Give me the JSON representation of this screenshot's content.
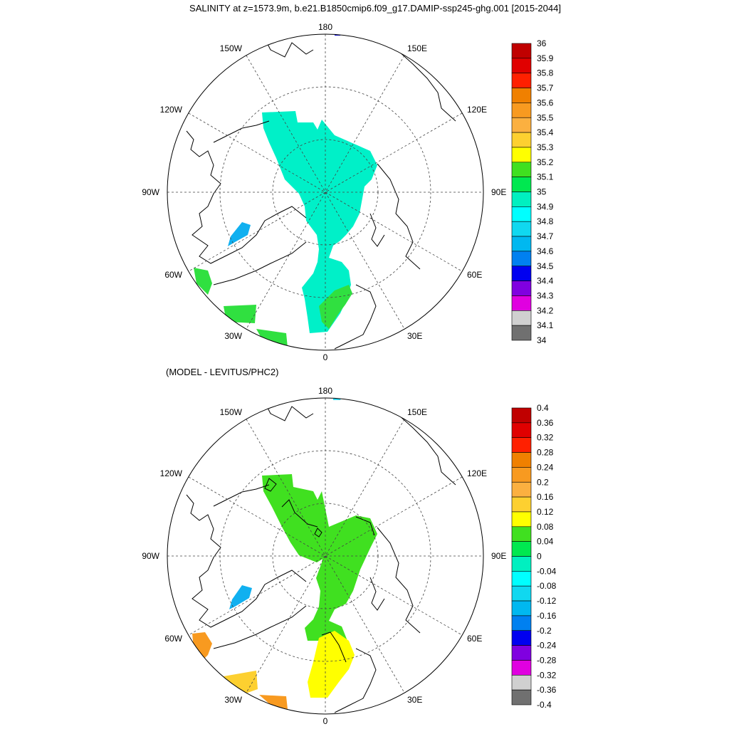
{
  "title": "SALINITY at z=1573.9m, b.e21.B1850cmip6.f09_g17.DAMIP-ssp245-ghg.001 [2015-2044]",
  "diff_title": "(MODEL - LEVITUS/PHC2)",
  "map_labels": {
    "lon_180": "180",
    "lon_0": "0",
    "lon_90W": "90W",
    "lon_90E": "90E",
    "lon_150W": "150W",
    "lon_150E": "150E",
    "lon_120W": "120W",
    "lon_120E": "120E",
    "lon_60W": "60W",
    "lon_60E": "60E",
    "lon_30W": "30W",
    "lon_30E": "30E"
  },
  "colorbar_top": {
    "labels": [
      "36",
      "35.9",
      "35.8",
      "35.7",
      "35.6",
      "35.5",
      "35.4",
      "35.3",
      "35.2",
      "35.1",
      "35",
      "34.9",
      "34.8",
      "34.7",
      "34.6",
      "34.5",
      "34.4",
      "34.3",
      "34.2",
      "34.1",
      "34"
    ],
    "colors": [
      "#c00000",
      "#e00000",
      "#ff2000",
      "#f08000",
      "#f89a20",
      "#fbb040",
      "#fdd030",
      "#ffff00",
      "#40e020",
      "#00e850",
      "#00f0c0",
      "#00ffff",
      "#10d8f0",
      "#00b8f0",
      "#0080f0",
      "#0000f0",
      "#8000e0",
      "#e000e0",
      "#d0d0d0",
      "#707070"
    ]
  },
  "colorbar_bottom": {
    "labels": [
      "0.4",
      "0.36",
      "0.32",
      "0.28",
      "0.24",
      "0.2",
      "0.16",
      "0.12",
      "0.08",
      "0.04",
      "0",
      "-0.04",
      "-0.08",
      "-0.12",
      "-0.16",
      "-0.2",
      "-0.24",
      "-0.28",
      "-0.32",
      "-0.36",
      "-0.4"
    ],
    "colors": [
      "#c00000",
      "#e00000",
      "#ff2000",
      "#f08000",
      "#f89a20",
      "#fbb040",
      "#fdd030",
      "#ffff00",
      "#40e020",
      "#00e850",
      "#00f0c0",
      "#00ffff",
      "#10d8f0",
      "#00b8f0",
      "#0080f0",
      "#0000f0",
      "#8000e0",
      "#e000e0",
      "#d0d0d0",
      "#707070"
    ]
  },
  "field_colors": {
    "top_main": "#00f0c8",
    "top_green": "#30e040",
    "top_blue": "#10b0f0",
    "top_navy": "#1010e0",
    "bot_green": "#40e020",
    "bot_yellow": "#ffff00",
    "bot_orange": "#f89a20",
    "bot_lightorange": "#fdd030",
    "bot_blue": "#10b0f0",
    "bot_cyan": "#30d8f0"
  }
}
